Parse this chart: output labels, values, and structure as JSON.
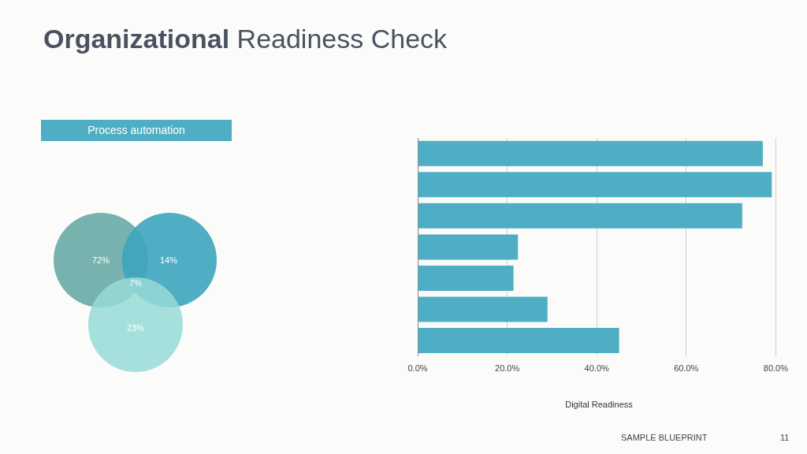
{
  "chart_data": [
    {
      "type": "bar",
      "orientation": "horizontal",
      "title": "Organizational Readiness Check",
      "xlabel": "Digital Readiness",
      "categories": [
        null,
        null,
        null,
        null,
        null,
        null,
        null
      ],
      "values": [
        77.1,
        79.1,
        72.5,
        22.4,
        21.4,
        29.0,
        45.0
      ],
      "color": "#4faec3",
      "xlim": [
        0,
        80
      ],
      "xticks": [
        {
          "value": 0,
          "label": "0.0%"
        },
        {
          "value": 20,
          "label": "20.0%"
        },
        {
          "value": 40,
          "label": "40.0%"
        },
        {
          "value": 60,
          "label": "60.0%"
        },
        {
          "value": 80,
          "label": "80.0%"
        }
      ],
      "grid": "x",
      "legend": false,
      "tick_labels": "x",
      "annotations": [
        "SAMPLE BLUEPRINT",
        "11"
      ]
    },
    {
      "type": "other",
      "title": "Process automation",
      "categories": [
        null,
        null,
        null,
        null
      ],
      "values": [
        72,
        14,
        7,
        23
      ],
      "value_labels": [
        "72%",
        "14%",
        "7%",
        "23%"
      ]
    }
  ]
}
